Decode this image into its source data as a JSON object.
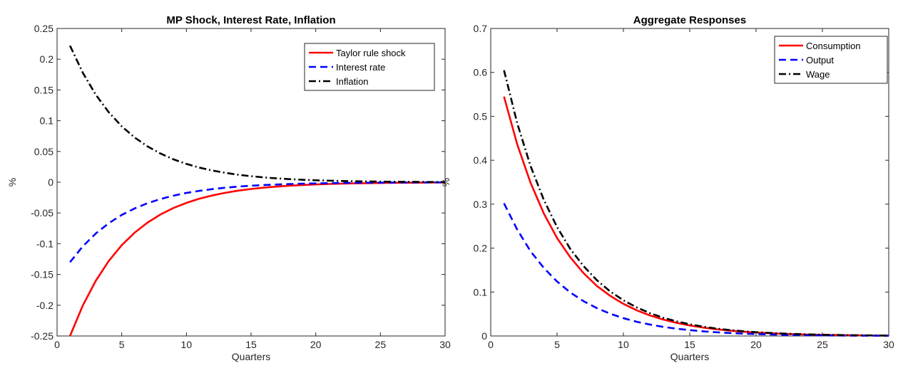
{
  "chart_data": [
    {
      "type": "line",
      "title": "MP Shock, Interest Rate, Inflation",
      "xlabel": "Quarters",
      "ylabel": "%",
      "xlim": [
        0,
        30
      ],
      "ylim": [
        -0.25,
        0.25
      ],
      "xticks": [
        0,
        5,
        10,
        15,
        20,
        25,
        30
      ],
      "yticks": [
        -0.25,
        -0.2,
        -0.15,
        -0.1,
        -0.05,
        0,
        0.05,
        0.1,
        0.15,
        0.2,
        0.25
      ],
      "ytick_labels": [
        "-0.25",
        "-0.2",
        "-0.15",
        "-0.1",
        "-0.05",
        "0",
        "0.05",
        "0.1",
        "0.15",
        "0.2",
        "0.25"
      ],
      "grid": false,
      "legend_position": "top-right",
      "x": [
        1,
        2,
        3,
        4,
        5,
        6,
        7,
        8,
        9,
        10,
        11,
        12,
        13,
        14,
        15,
        16,
        17,
        18,
        19,
        20,
        21,
        22,
        23,
        24,
        25,
        26,
        27,
        28,
        29,
        30
      ],
      "series": [
        {
          "name": "Taylor rule shock",
          "color": "#ff0000",
          "dash": "solid",
          "values": [
            -0.25,
            -0.2,
            -0.16,
            -0.128,
            -0.1024,
            -0.0819,
            -0.0655,
            -0.0524,
            -0.0419,
            -0.0336,
            -0.0268,
            -0.0215,
            -0.0172,
            -0.0137,
            -0.011,
            -0.0088,
            -0.007,
            -0.0056,
            -0.0045,
            -0.0036,
            -0.0029,
            -0.0023,
            -0.0018,
            -0.0015,
            -0.0012,
            -0.0009,
            -0.0008,
            -0.0006,
            -0.0005,
            -0.0004
          ]
        },
        {
          "name": "Interest rate",
          "color": "#0000ff",
          "dash": "dashed",
          "values": [
            -0.13,
            -0.104,
            -0.0832,
            -0.0666,
            -0.0532,
            -0.0426,
            -0.0341,
            -0.0273,
            -0.0218,
            -0.0174,
            -0.014,
            -0.0112,
            -0.0089,
            -0.0071,
            -0.0057,
            -0.0046,
            -0.0037,
            -0.0029,
            -0.0023,
            -0.0019,
            -0.0015,
            -0.0012,
            -0.001,
            -0.0008,
            -0.0006,
            -0.0005,
            -0.0004,
            -0.0003,
            -0.0002,
            -0.0002
          ]
        },
        {
          "name": "Inflation",
          "color": "#000000",
          "dash": "dashdot",
          "values": [
            0.222,
            0.1776,
            0.1421,
            0.1137,
            0.0909,
            0.0727,
            0.0582,
            0.0466,
            0.0372,
            0.0298,
            0.0238,
            0.0191,
            0.0153,
            0.0122,
            0.0098,
            0.0078,
            0.0062,
            0.005,
            0.004,
            0.0032,
            0.0026,
            0.002,
            0.0016,
            0.0013,
            0.001,
            0.0008,
            0.0007,
            0.0005,
            0.0004,
            0.0003
          ]
        }
      ]
    },
    {
      "type": "line",
      "title": "Aggregate Responses",
      "xlabel": "Quarters",
      "ylabel": "%",
      "xlim": [
        0,
        30
      ],
      "ylim": [
        0,
        0.7
      ],
      "xticks": [
        0,
        5,
        10,
        15,
        20,
        25,
        30
      ],
      "yticks": [
        0,
        0.1,
        0.2,
        0.3,
        0.4,
        0.5,
        0.6,
        0.7
      ],
      "ytick_labels": [
        "0",
        "0.1",
        "0.2",
        "0.3",
        "0.4",
        "0.5",
        "0.6",
        "0.7"
      ],
      "grid": false,
      "legend_position": "top-right",
      "x": [
        1,
        2,
        3,
        4,
        5,
        6,
        7,
        8,
        9,
        10,
        11,
        12,
        13,
        14,
        15,
        16,
        17,
        18,
        19,
        20,
        21,
        22,
        23,
        24,
        25,
        26,
        27,
        28,
        29,
        30
      ],
      "series": [
        {
          "name": "Consumption",
          "color": "#ff0000",
          "dash": "solid",
          "values": [
            0.545,
            0.436,
            0.349,
            0.279,
            0.223,
            0.179,
            0.143,
            0.114,
            0.0915,
            0.0732,
            0.0585,
            0.0468,
            0.0375,
            0.03,
            0.024,
            0.0192,
            0.0154,
            0.0123,
            0.0098,
            0.0079,
            0.0063,
            0.005,
            0.004,
            0.0032,
            0.0026,
            0.0021,
            0.0017,
            0.0013,
            0.0011,
            0.0009
          ]
        },
        {
          "name": "Output",
          "color": "#0000ff",
          "dash": "dashed",
          "values": [
            0.302,
            0.242,
            0.193,
            0.155,
            0.124,
            0.099,
            0.0792,
            0.0634,
            0.0507,
            0.0406,
            0.0324,
            0.026,
            0.0208,
            0.0166,
            0.0133,
            0.0106,
            0.0085,
            0.0068,
            0.0054,
            0.0044,
            0.0035,
            0.0028,
            0.0022,
            0.0018,
            0.0014,
            0.0011,
            0.0009,
            0.0007,
            0.0006,
            0.0005
          ]
        },
        {
          "name": "Wage",
          "color": "#000000",
          "dash": "dashdot",
          "values": [
            0.605,
            0.484,
            0.387,
            0.31,
            0.248,
            0.198,
            0.159,
            0.127,
            0.1015,
            0.0812,
            0.065,
            0.052,
            0.0416,
            0.0333,
            0.0266,
            0.0213,
            0.017,
            0.0136,
            0.0109,
            0.0087,
            0.007,
            0.0056,
            0.0045,
            0.0036,
            0.0029,
            0.0023,
            0.0018,
            0.0015,
            0.0012,
            0.0009
          ]
        }
      ]
    }
  ]
}
